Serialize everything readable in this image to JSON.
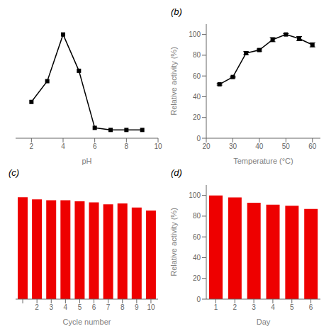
{
  "chart_data": [
    {
      "type": "line",
      "x": [
        2,
        3,
        4,
        5,
        6,
        7,
        8,
        9
      ],
      "values": [
        35,
        55,
        100,
        65,
        10,
        8,
        8,
        8
      ],
      "xlabel": "pH",
      "xlim": [
        1,
        10
      ],
      "xticks": [
        2,
        4,
        6,
        8,
        10
      ],
      "ylim": [
        0,
        110
      ],
      "tick_labels": "x",
      "color": "#000000",
      "marker": "square",
      "grid": false
    },
    {
      "type": "line",
      "title": "(b)",
      "x": [
        25,
        30,
        35,
        40,
        45,
        50,
        55,
        60
      ],
      "values": [
        52,
        59,
        82,
        85,
        95,
        100,
        96,
        90
      ],
      "yerr": [
        0.8,
        0.8,
        1.5,
        1.0,
        2.0,
        0.8,
        2.0,
        2.0
      ],
      "xlabel": "Temperature (°C)",
      "ylabel": "Relative activity (%)",
      "xlim": [
        20,
        63
      ],
      "xticks": [
        20,
        30,
        40,
        50,
        60
      ],
      "ylim": [
        0,
        110
      ],
      "yticks": [
        0,
        20,
        40,
        60,
        80,
        100
      ],
      "color": "#000000",
      "marker": "square",
      "grid": false
    },
    {
      "type": "bar",
      "title": "(c)",
      "categories": [
        null,
        "2",
        "3",
        "4",
        "5",
        "6",
        "7",
        "8",
        "9",
        "10"
      ],
      "values": [
        100,
        98,
        97,
        97,
        96,
        95,
        93,
        94,
        90,
        87
      ],
      "xlabel": "Cycle number",
      "ylim": [
        0,
        112
      ],
      "tick_labels": "x",
      "color": "#EE0000",
      "grid": false
    },
    {
      "type": "bar",
      "title": "(d)",
      "categories": [
        "1",
        "2",
        "3",
        "4",
        "5",
        "6"
      ],
      "values": [
        100,
        98,
        93,
        91,
        90,
        87
      ],
      "xlabel": "Day",
      "ylabel": "Relative activity (%)",
      "ylim": [
        0,
        110
      ],
      "yticks": [
        0,
        20,
        40,
        60,
        80,
        100
      ],
      "color": "#EE0000",
      "grid": false
    }
  ]
}
